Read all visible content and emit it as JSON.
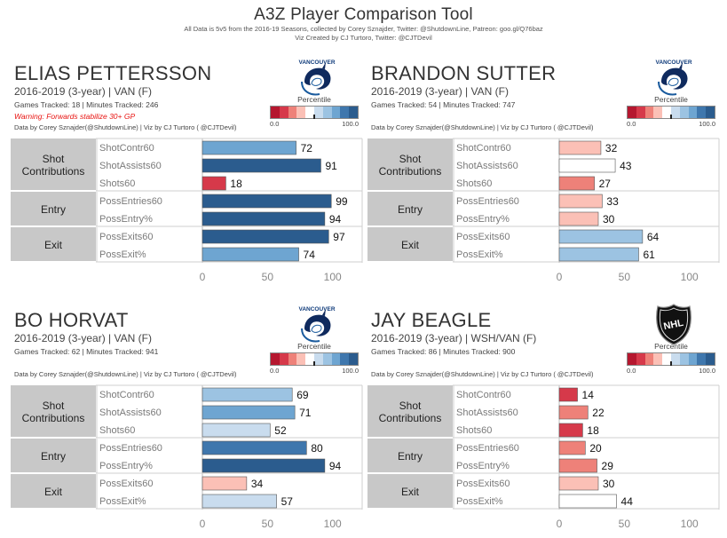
{
  "header": {
    "title": "A3Z Player Comparison Tool",
    "line1": "All Data is 5v5 from the 2016-19 Seasons, collected by Corey Sznajder, Twitter: @ShutdownLine, Patreon: goo.gl/Q76baz",
    "line2": "Viz Created by CJ Turtoro, Twitter: @CJTDevil"
  },
  "legend": {
    "title": "Percentile",
    "min_label": "0.0",
    "max_label": "100.0",
    "colors": [
      "#b5172f",
      "#d6394a",
      "#ee8179",
      "#fbc0b6",
      "#ffffff",
      "#c9dcee",
      "#9cc3e2",
      "#6ea5d1",
      "#3f77ad",
      "#2b5c8e"
    ]
  },
  "colors": {
    "group_bg": "#c8c8c8",
    "axis": "#777777",
    "bar_stroke": "#555555"
  },
  "players": [
    {
      "name": "ELIAS PETTERSSON",
      "span": "2016-2019 (3-year) | VAN (F)",
      "stats": "Games Tracked: 18 | Minutes Tracked: 246",
      "warning": "Warning: Forwards stabilize 30+ GP",
      "credit": "Data by Corey Sznajder(@ShutdownLine) | Viz by CJ Turtoro ( @CJTDevil)",
      "logo": "vancouver-canucks-logo",
      "logo_text": "VANCOUVER"
    },
    {
      "name": "BRANDON SUTTER",
      "span": "2016-2019 (3-year) | VAN (F)",
      "stats": "Games Tracked: 54 | Minutes Tracked: 747",
      "warning": "",
      "credit": "Data by Corey Sznajder(@ShutdownLine) | Viz by CJ Turtoro ( @CJTDevil)",
      "logo": "vancouver-canucks-logo",
      "logo_text": "VANCOUVER"
    },
    {
      "name": "BO HORVAT",
      "span": "2016-2019 (3-year) | VAN (F)",
      "stats": "Games Tracked: 62 | Minutes Tracked: 941",
      "warning": "",
      "credit": "Data by Corey Sznajder(@ShutdownLine) | Viz by CJ Turtoro ( @CJTDevil)",
      "logo": "vancouver-canucks-logo",
      "logo_text": "VANCOUVER"
    },
    {
      "name": "JAY BEAGLE",
      "span": "2016-2019 (3-year) | WSH/VAN (F)",
      "stats": "Games Tracked: 86 | Minutes Tracked: 900",
      "warning": "",
      "credit": "Data by Corey Sznajder(@ShutdownLine) | Viz by CJ Turtoro ( @CJTDevil)",
      "logo": "nhl-logo",
      "logo_text": "NHL"
    }
  ],
  "chart_data": [
    {
      "type": "bar",
      "orientation": "horizontal",
      "groups": [
        {
          "name": "Shot Contributions",
          "metrics": [
            "ShotContr60",
            "ShotAssists60",
            "Shots60"
          ]
        },
        {
          "name": "Entry",
          "metrics": [
            "PossEntries60",
            "PossEntry%"
          ]
        },
        {
          "name": "Exit",
          "metrics": [
            "PossExits60",
            "PossExit%"
          ]
        }
      ],
      "categories": [
        "ShotContr60",
        "ShotAssists60",
        "Shots60",
        "PossEntries60",
        "PossEntry%",
        "PossExits60",
        "PossExit%"
      ],
      "values": [
        72,
        91,
        18,
        99,
        94,
        97,
        74
      ],
      "xlim": [
        0,
        105
      ],
      "xticks": [
        0,
        50,
        100
      ],
      "xlabel": "",
      "color_by": "Percentile"
    },
    {
      "type": "bar",
      "orientation": "horizontal",
      "groups": [
        {
          "name": "Shot Contributions",
          "metrics": [
            "ShotContr60",
            "ShotAssists60",
            "Shots60"
          ]
        },
        {
          "name": "Entry",
          "metrics": [
            "PossEntries60",
            "PossEntry%"
          ]
        },
        {
          "name": "Exit",
          "metrics": [
            "PossExits60",
            "PossExit%"
          ]
        }
      ],
      "categories": [
        "ShotContr60",
        "ShotAssists60",
        "Shots60",
        "PossEntries60",
        "PossEntry%",
        "PossExits60",
        "PossExit%"
      ],
      "values": [
        32,
        43,
        27,
        33,
        30,
        64,
        61
      ],
      "xlim": [
        0,
        105
      ],
      "xticks": [
        0,
        50,
        100
      ],
      "xlabel": "",
      "color_by": "Percentile"
    },
    {
      "type": "bar",
      "orientation": "horizontal",
      "groups": [
        {
          "name": "Shot Contributions",
          "metrics": [
            "ShotContr60",
            "ShotAssists60",
            "Shots60"
          ]
        },
        {
          "name": "Entry",
          "metrics": [
            "PossEntries60",
            "PossEntry%"
          ]
        },
        {
          "name": "Exit",
          "metrics": [
            "PossExits60",
            "PossExit%"
          ]
        }
      ],
      "categories": [
        "ShotContr60",
        "ShotAssists60",
        "Shots60",
        "PossEntries60",
        "PossEntry%",
        "PossExits60",
        "PossExit%"
      ],
      "values": [
        69,
        71,
        52,
        80,
        94,
        34,
        57
      ],
      "xlim": [
        0,
        105
      ],
      "xticks": [
        0,
        50,
        100
      ],
      "xlabel": "",
      "color_by": "Percentile"
    },
    {
      "type": "bar",
      "orientation": "horizontal",
      "groups": [
        {
          "name": "Shot Contributions",
          "metrics": [
            "ShotContr60",
            "ShotAssists60",
            "Shots60"
          ]
        },
        {
          "name": "Entry",
          "metrics": [
            "PossEntries60",
            "PossEntry%"
          ]
        },
        {
          "name": "Exit",
          "metrics": [
            "PossExits60",
            "PossExit%"
          ]
        }
      ],
      "categories": [
        "ShotContr60",
        "ShotAssists60",
        "Shots60",
        "PossEntries60",
        "PossEntry%",
        "PossExits60",
        "PossExit%"
      ],
      "values": [
        14,
        22,
        18,
        20,
        29,
        30,
        44
      ],
      "xlim": [
        0,
        105
      ],
      "xticks": [
        0,
        50,
        100
      ],
      "xlabel": "",
      "color_by": "Percentile"
    }
  ]
}
